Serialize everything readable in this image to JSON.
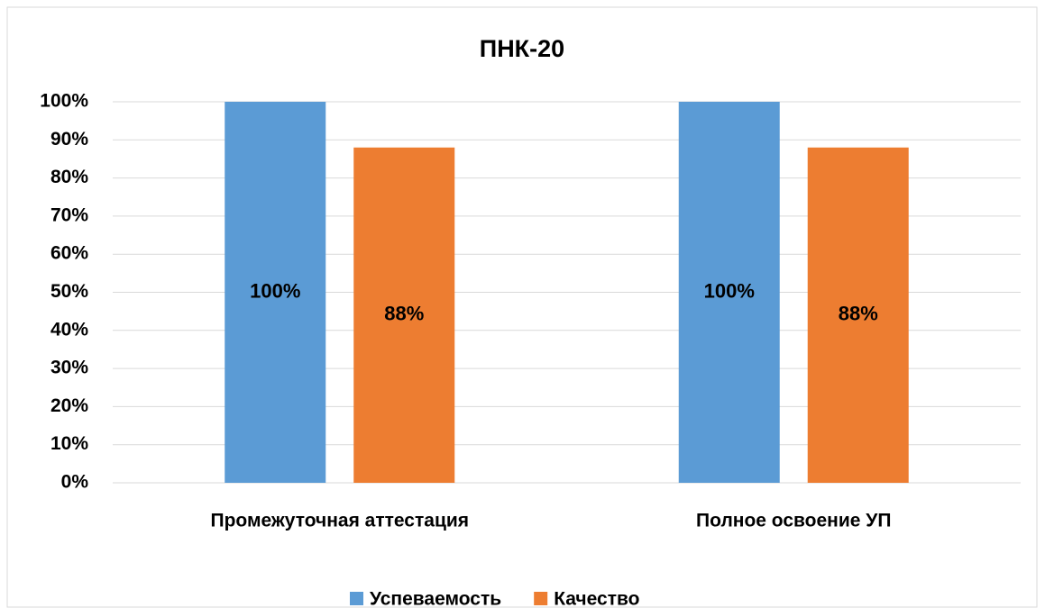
{
  "chart_data": {
    "type": "bar",
    "title": "ПНК-20",
    "categories": [
      "Промежуточная аттестация",
      "Полное освоение УП"
    ],
    "series": [
      {
        "name": "Успеваемость",
        "color": "#5b9bd5",
        "values": [
          100,
          100
        ],
        "value_labels": [
          "100%",
          "100%"
        ]
      },
      {
        "name": "Качество",
        "color": "#ed7d31",
        "values": [
          88,
          88
        ],
        "value_labels": [
          "88%",
          "88%"
        ]
      }
    ],
    "ylim": [
      0,
      100
    ],
    "yticks": [
      {
        "value": 0,
        "label": "0%"
      },
      {
        "value": 10,
        "label": "10%"
      },
      {
        "value": 20,
        "label": "20%"
      },
      {
        "value": 30,
        "label": "30%"
      },
      {
        "value": 40,
        "label": "40%"
      },
      {
        "value": 50,
        "label": "50%"
      },
      {
        "value": 60,
        "label": "60%"
      },
      {
        "value": 70,
        "label": "70%"
      },
      {
        "value": 80,
        "label": "80%"
      },
      {
        "value": 90,
        "label": "90%"
      },
      {
        "value": 100,
        "label": "100%"
      }
    ],
    "grid": true,
    "legend": "bottom"
  }
}
